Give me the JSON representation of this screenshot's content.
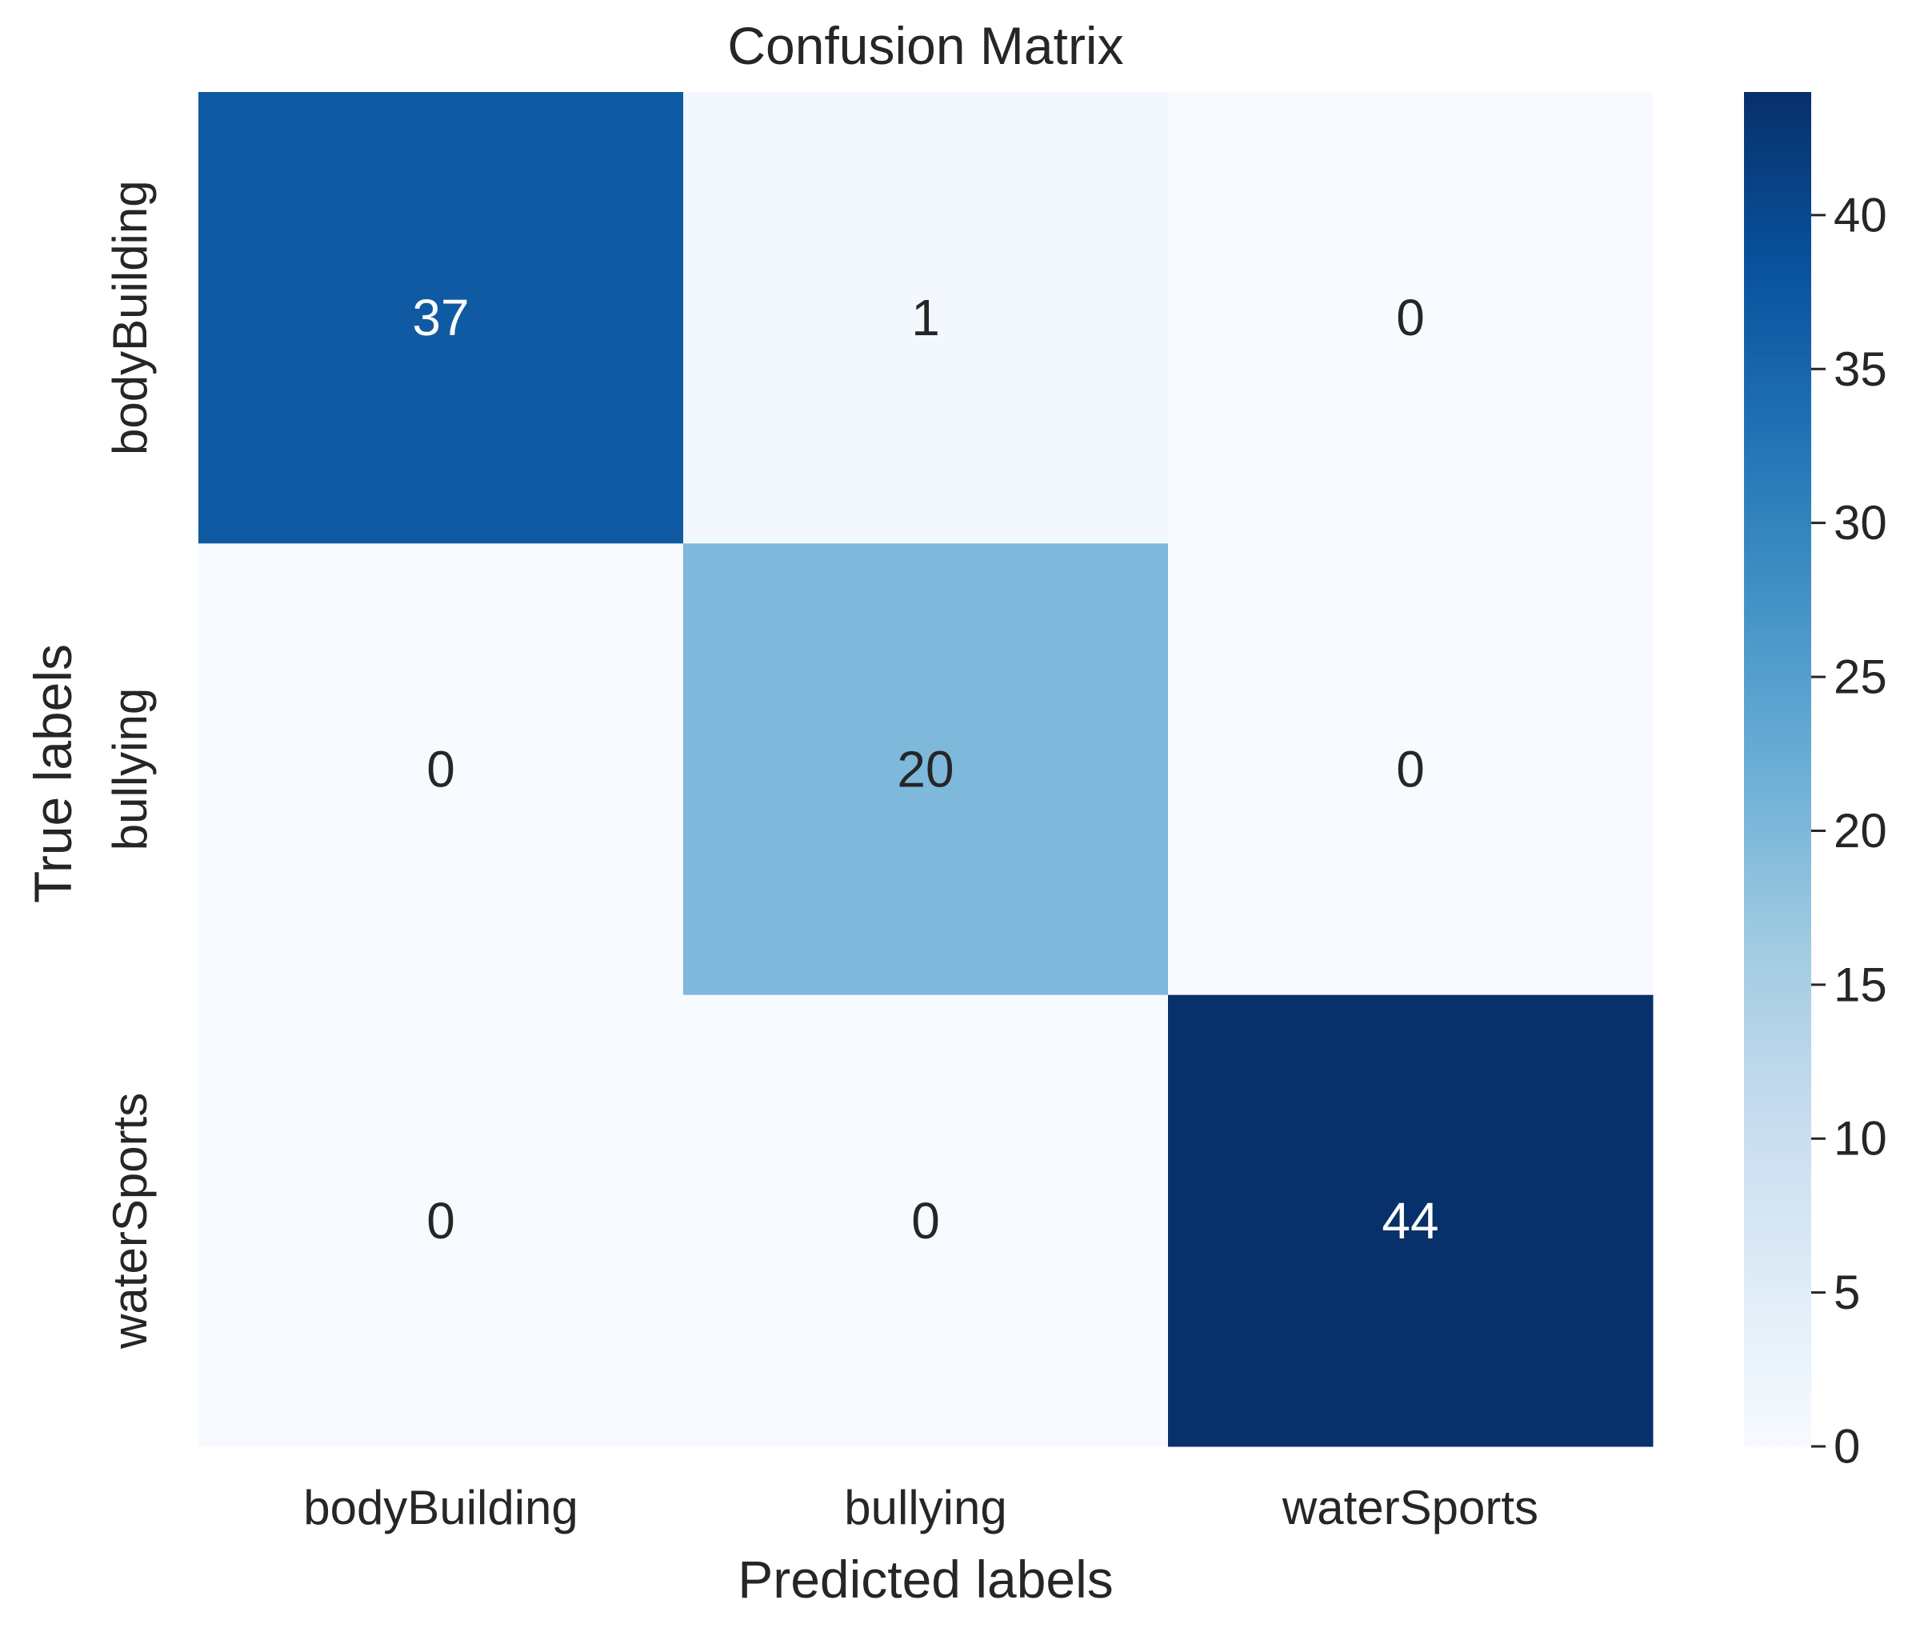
{
  "chart_data": {
    "type": "heatmap",
    "title": "Confusion Matrix",
    "xlabel": "Predicted labels",
    "ylabel": "True labels",
    "x_categories": [
      "bodyBuilding",
      "bullying",
      "waterSports"
    ],
    "y_categories": [
      "bodyBuilding",
      "bullying",
      "waterSports"
    ],
    "values": [
      [
        37,
        1,
        0
      ],
      [
        0,
        20,
        0
      ],
      [
        0,
        0,
        44
      ]
    ],
    "colormap": "Blues",
    "vmin": 0,
    "vmax": 44,
    "colorbar": {
      "ticks": [
        0,
        5,
        10,
        15,
        20,
        25,
        30,
        35,
        40
      ]
    },
    "annotations": true,
    "grid": false
  }
}
